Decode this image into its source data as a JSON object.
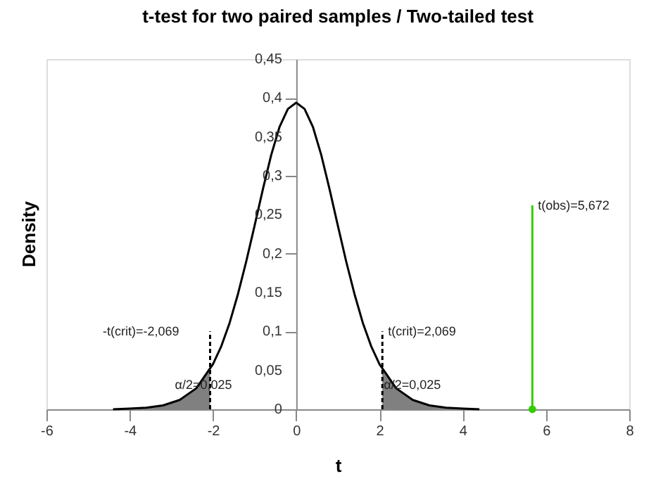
{
  "chart_data": {
    "type": "line",
    "title": "t-test for two paired samples / Two-tailed test",
    "xlabel": "t",
    "ylabel": "Density",
    "xlim": [
      -6,
      8
    ],
    "xticks": [
      -6,
      -4,
      -2,
      0,
      2,
      4,
      6,
      8
    ],
    "ylim": [
      0,
      0.45
    ],
    "yticks": [
      0,
      {
        "value": 0.05,
        "label": "0,05"
      },
      {
        "value": 0.1,
        "label": "0,1"
      },
      {
        "value": 0.15,
        "label": "0,15"
      },
      {
        "value": 0.2,
        "label": "0,2"
      },
      {
        "value": 0.25,
        "label": "0,25"
      },
      {
        "value": 0.3,
        "label": "0,3"
      },
      {
        "value": 0.35,
        "label": "0,35"
      },
      {
        "value": 0.4,
        "label": "0,4"
      },
      {
        "value": 0.45,
        "label": "0,45"
      }
    ],
    "series": [
      {
        "type": "area",
        "color": "#808080",
        "x": [
          -4.4,
          -4.0,
          -3.6,
          -3.2,
          -2.8,
          -2.4,
          -2.069
        ],
        "values": [
          0,
          0.001,
          0.002,
          0.005,
          0.012,
          0.027,
          0.051
        ]
      },
      {
        "type": "area",
        "color": "#808080",
        "x": [
          2.069,
          2.4,
          2.8,
          3.2,
          3.6,
          4.0,
          4.4
        ],
        "values": [
          0.051,
          0.027,
          0.012,
          0.005,
          0.002,
          0.001,
          0
        ]
      },
      {
        "color": "#000000",
        "x": [
          -4.4,
          -4.0,
          -3.6,
          -3.2,
          -2.8,
          -2.4,
          -2.0,
          -1.8,
          -1.6,
          -1.4,
          -1.2,
          -1.0,
          -0.8,
          -0.6,
          -0.4,
          -0.2,
          0,
          0.2,
          0.4,
          0.6,
          0.8,
          1.0,
          1.2,
          1.4,
          1.6,
          1.8,
          2.0,
          2.4,
          2.8,
          3.2,
          3.6,
          4.0,
          4.4
        ],
        "values": [
          0,
          0.001,
          0.002,
          0.005,
          0.012,
          0.027,
          0.058,
          0.081,
          0.111,
          0.148,
          0.19,
          0.236,
          0.283,
          0.327,
          0.363,
          0.386,
          0.394,
          0.386,
          0.363,
          0.327,
          0.283,
          0.236,
          0.19,
          0.148,
          0.111,
          0.081,
          0.058,
          0.027,
          0.012,
          0.005,
          0.002,
          0.001,
          0
        ]
      },
      {
        "color": "#000000",
        "line_style": "dashed",
        "x": [
          -2.069,
          -2.069
        ],
        "values": [
          0,
          0.1
        ]
      },
      {
        "color": "#000000",
        "line_style": "dashed",
        "x": [
          2.069,
          2.069
        ],
        "values": [
          0,
          0.1
        ]
      },
      {
        "color": "#33cc00",
        "x": [
          5.672,
          5.672
        ],
        "values": [
          0,
          0.262
        ]
      },
      {
        "type": "scatter",
        "color": "#33cc00",
        "marker": "circle",
        "x": [
          5.672
        ],
        "values": [
          0
        ]
      }
    ],
    "annotations": [
      {
        "text": "-t(crit)=-2,069",
        "x": -2.069,
        "y": 0.1
      },
      {
        "text": "t(crit)=2,069",
        "x": 2.069,
        "y": 0.1
      },
      {
        "text": "α/2=0,025",
        "x": -2.069,
        "y": 0.015
      },
      {
        "text": "α/2=0,025",
        "x": 2.069,
        "y": 0.015
      },
      {
        "text": "t(obs)=5,672",
        "x": 5.672,
        "y": 0.262
      }
    ]
  }
}
